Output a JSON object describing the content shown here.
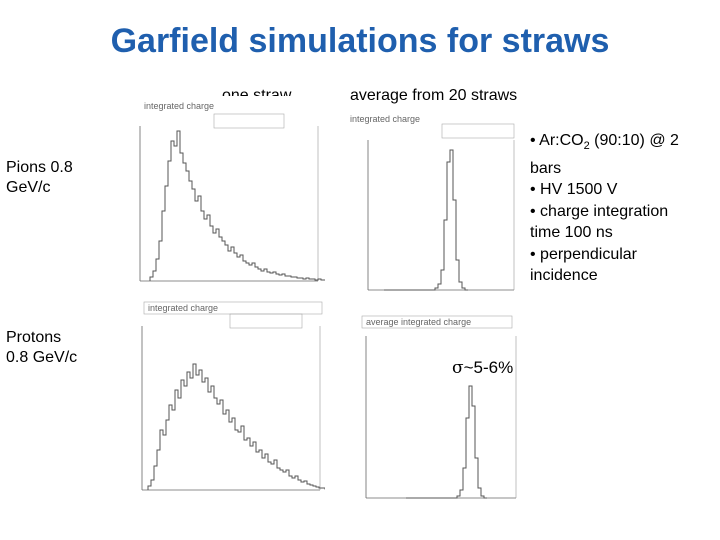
{
  "slide": {
    "title": "Garfield simulations for straws",
    "col_one_straw": "one straw",
    "col_average": "average from 20 straws",
    "row_pions_line1": "Pions 0.8",
    "row_pions_line2": "GeV/c",
    "row_protons_line1": "Protons",
    "row_protons_line2": "0.8 GeV/c",
    "notes": {
      "n1_a": "• Ar:CO",
      "n1_sub": "2",
      "n1_b": " (90:10) @ 2",
      "n1_c": "bars",
      "n2": "• HV 1500 V",
      "n3_a": "• charge integration",
      "n3_b": "time 100 ns",
      "n4_a": "• perpendicular",
      "n4_b": "incidence"
    },
    "sigma_symbol": "σ",
    "sigma_text": "~5-6%"
  },
  "plots": {
    "p1_title": "integrated charge",
    "p2_title": "integrated charge",
    "p3_title": "integrated charge",
    "p4_title": "average integrated charge"
  },
  "colors": {
    "title": "#1f5fae",
    "hist": "#555555"
  }
}
